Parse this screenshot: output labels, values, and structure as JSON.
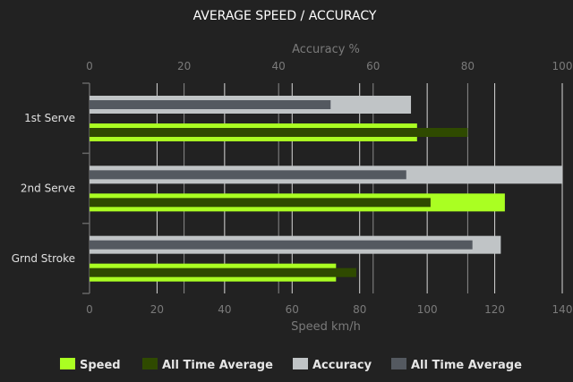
{
  "chart_data": {
    "type": "bar",
    "orientation": "horizontal",
    "title": "AVERAGE SPEED / ACCURACY",
    "categories": [
      "1st Serve",
      "2nd Serve",
      "Grnd Stroke"
    ],
    "speed_axis": {
      "label": "Speed km/h",
      "range": [
        0,
        140
      ],
      "ticks": [
        0,
        20,
        40,
        60,
        80,
        100,
        120,
        140
      ],
      "position": "bottom"
    },
    "accuracy_axis": {
      "label": "Accuracy %",
      "range": [
        0,
        100
      ],
      "ticks": [
        0,
        20,
        40,
        60,
        80,
        100
      ],
      "position": "top"
    },
    "series": [
      {
        "name": "Speed",
        "axis": "speed",
        "color": "#aaff22",
        "values": [
          97,
          123,
          73
        ]
      },
      {
        "name": "All Time Average",
        "axis": "speed",
        "color": "#2f4a00",
        "values": [
          112,
          101,
          79
        ]
      },
      {
        "name": "Accuracy",
        "axis": "accuracy",
        "color": "#c0c4c6",
        "values": [
          68,
          100,
          87
        ]
      },
      {
        "name": "All Time Average",
        "axis": "accuracy",
        "color": "#545960",
        "values": [
          51,
          67,
          81
        ]
      }
    ],
    "grid": true,
    "legend_position": "bottom"
  }
}
